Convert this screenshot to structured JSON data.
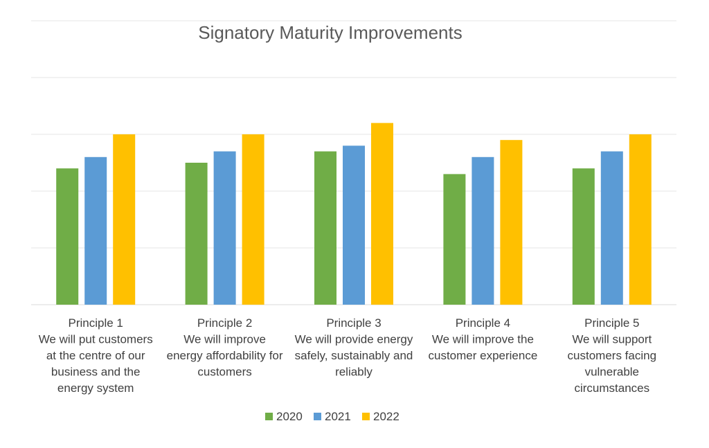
{
  "chart_data": {
    "type": "bar",
    "title": "Signatory Maturity Improvements",
    "categories": [
      [
        "Principle 1",
        "We will put customers",
        "at the centre of our",
        "business and the",
        "energy system"
      ],
      [
        "Principle 2",
        "We will improve",
        "energy affordability for",
        "customers"
      ],
      [
        "Principle 3",
        "We will provide energy",
        "safely, sustainably and",
        "reliably"
      ],
      [
        "Principle 4",
        "We will improve the",
        "customer experience"
      ],
      [
        "Principle 5",
        "We will support",
        "customers facing",
        "vulnerable",
        "circumstances"
      ]
    ],
    "series": [
      {
        "name": "2020",
        "color": "#70AD47",
        "values": [
          2.4,
          2.5,
          2.7,
          2.3,
          2.4
        ]
      },
      {
        "name": "2021",
        "color": "#5B9BD5",
        "values": [
          2.6,
          2.7,
          2.8,
          2.6,
          2.7
        ]
      },
      {
        "name": "2022",
        "color": "#FFC000",
        "values": [
          3.0,
          3.0,
          3.2,
          2.9,
          3.0
        ]
      }
    ],
    "ylim": [
      0,
      5
    ],
    "grid": true,
    "legend": "bottom"
  }
}
